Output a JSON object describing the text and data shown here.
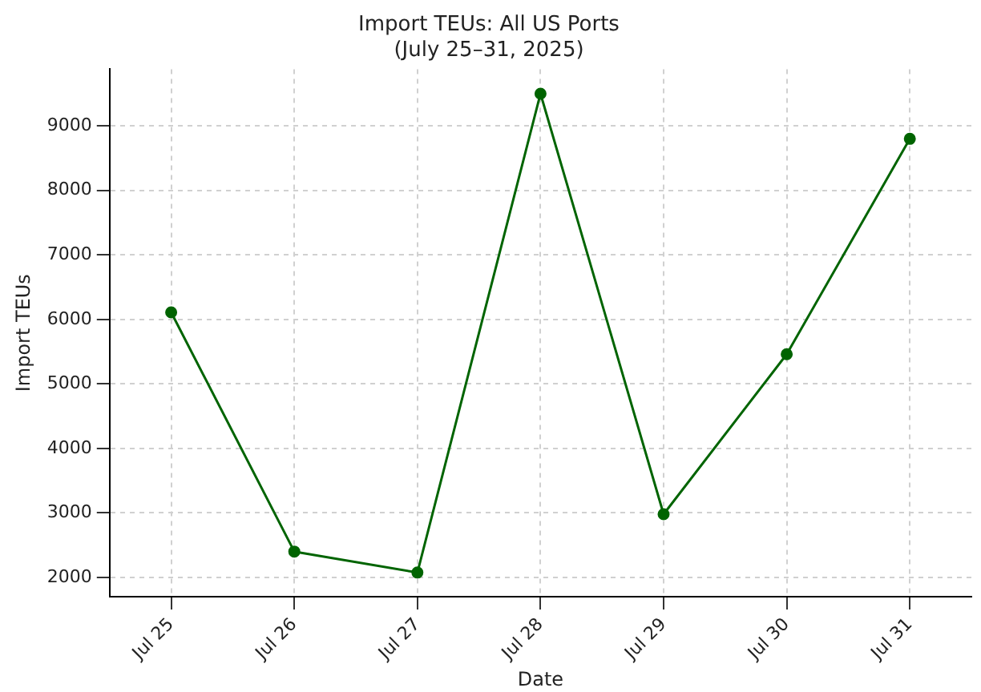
{
  "chart_data": {
    "type": "line",
    "title": "Import TEUs: All US Ports",
    "subtitle": "(July 25–31, 2025)",
    "xlabel": "Date",
    "ylabel": "Import TEUs",
    "categories": [
      "Jul 25",
      "Jul 26",
      "Jul 27",
      "Jul 28",
      "Jul 29",
      "Jul 30",
      "Jul 31"
    ],
    "series": [
      {
        "color": "#006400",
        "values": [
          6110,
          2400,
          2075,
          9500,
          2980,
          5460,
          8800
        ]
      }
    ],
    "ylim": [
      1700,
      9880
    ],
    "yticks": [
      2000,
      3000,
      4000,
      5000,
      6000,
      7000,
      8000,
      9000
    ],
    "grid": true,
    "marker": "circle",
    "line_style": "solid",
    "legend": false
  }
}
